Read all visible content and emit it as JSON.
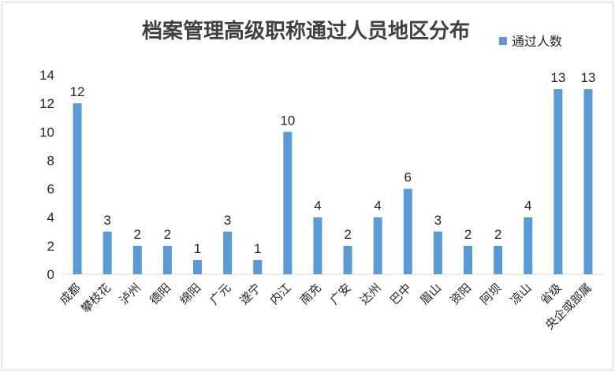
{
  "chart_data": {
    "type": "bar",
    "title": "档案管理高级职称通过人员地区分布",
    "categories": [
      "成都",
      "攀枝花",
      "泸州",
      "德阳",
      "绵阳",
      "广元",
      "遂宁",
      "内江",
      "南充",
      "广安",
      "达州",
      "巴中",
      "眉山",
      "资阳",
      "阿坝",
      "凉山",
      "省级",
      "央企或部属"
    ],
    "series": [
      {
        "name": "通过人数",
        "values": [
          12,
          3,
          2,
          2,
          1,
          3,
          1,
          10,
          4,
          2,
          4,
          6,
          3,
          2,
          2,
          4,
          13,
          13
        ],
        "color": "#5b9bd5"
      }
    ],
    "ylim": [
      0,
      14
    ],
    "yticks": [
      0,
      2,
      4,
      6,
      8,
      10,
      12,
      14
    ],
    "grid": false,
    "legend": "top-right",
    "data_labels": true
  }
}
